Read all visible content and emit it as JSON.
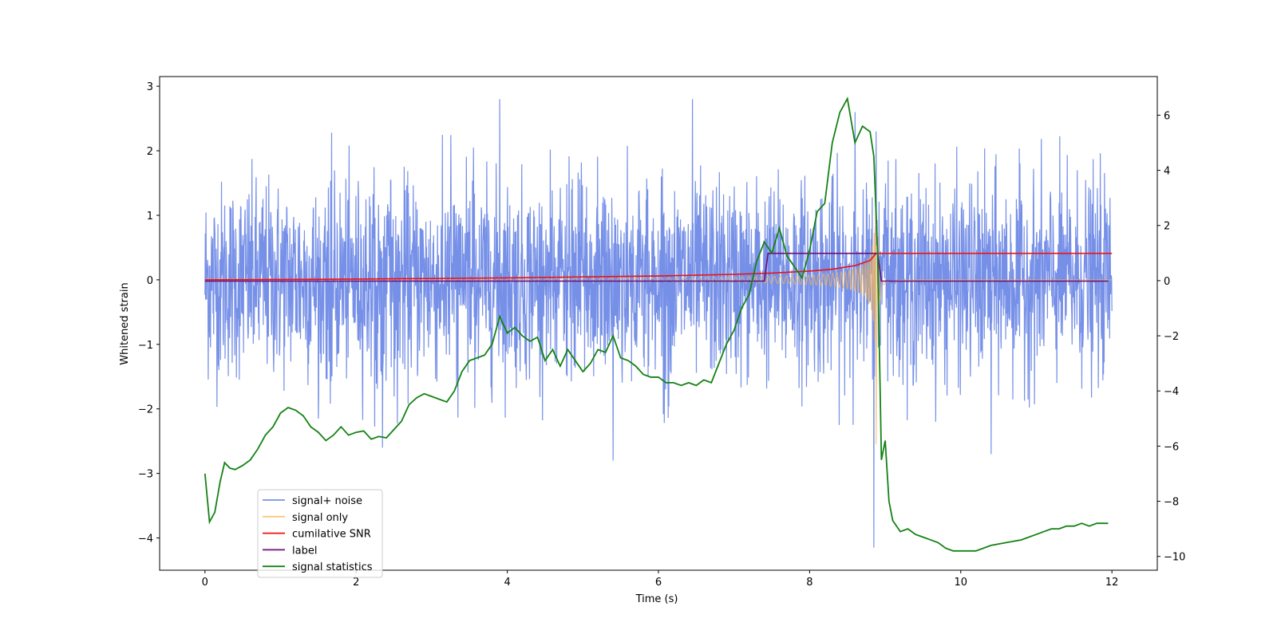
{
  "chart_data": {
    "type": "line",
    "title": "",
    "xlabel": "Time (s)",
    "ylabel": "Whitened strain",
    "y2label": "",
    "xlim": [
      -0.6,
      12.6
    ],
    "ylim": [
      -4.5,
      3.15
    ],
    "y2lim": [
      -10.5,
      7.4
    ],
    "xticks": [
      0,
      2,
      4,
      6,
      8,
      10,
      12
    ],
    "yticks": [
      -4,
      -3,
      -2,
      -1,
      0,
      1,
      2,
      3
    ],
    "y2ticks": [
      -10,
      -8,
      -6,
      -4,
      -2,
      0,
      2,
      4,
      6
    ],
    "grid": false,
    "legend_position": "lower-left",
    "colors": {
      "signal_noise": "#6a87e6",
      "signal_only": "#f5b55a",
      "cumulative_snr": "#ee1111",
      "label": "#6a0f78",
      "signal_statistics": "#148214"
    },
    "legend": [
      {
        "name": "signal+ noise",
        "color": "#7893e6"
      },
      {
        "name": "signal only",
        "color": "#fcc97a"
      },
      {
        "name": "cumilative SNR",
        "color": "#ee1111"
      },
      {
        "name": "label",
        "color": "#6a0f78"
      },
      {
        "name": "signal statistics",
        "color": "#148214"
      }
    ],
    "series": [
      {
        "name": "signal+ noise",
        "axis": "left",
        "t_range": [
          0,
          12
        ],
        "description_std": 0.75,
        "spike_peaks": [
          [
            3.9,
            2.8
          ],
          [
            6.45,
            2.8
          ],
          [
            8.6,
            2.6
          ],
          [
            5.4,
            -2.8
          ],
          [
            8.85,
            -4.15
          ],
          [
            8.88,
            2.3
          ],
          [
            10.4,
            -2.7
          ],
          [
            2.35,
            -2.6
          ]
        ]
      },
      {
        "name": "signal only",
        "axis": "left",
        "t_range": [
          0,
          12
        ],
        "merger_time": 8.88,
        "peak_amplitude": 1.9
      },
      {
        "name": "cumilative SNR",
        "axis": "left",
        "x": [
          0,
          1,
          2,
          3,
          4,
          5,
          6,
          7,
          7.5,
          8,
          8.3,
          8.6,
          8.8,
          8.88,
          9,
          12
        ],
        "values": [
          0.0,
          0.005,
          0.012,
          0.02,
          0.03,
          0.045,
          0.06,
          0.085,
          0.105,
          0.135,
          0.165,
          0.22,
          0.3,
          0.41,
          0.41,
          0.41
        ]
      },
      {
        "name": "label",
        "axis": "left",
        "x": [
          0,
          7.4,
          7.45,
          8.9,
          8.95,
          11.95
        ],
        "values": [
          -0.02,
          -0.02,
          0.41,
          0.41,
          -0.02,
          -0.02
        ]
      },
      {
        "name": "signal statistics",
        "axis": "right",
        "x": [
          0.0,
          0.06,
          0.13,
          0.2,
          0.26,
          0.33,
          0.4,
          0.5,
          0.6,
          0.7,
          0.8,
          0.9,
          1.0,
          1.1,
          1.2,
          1.3,
          1.4,
          1.5,
          1.6,
          1.7,
          1.8,
          1.9,
          2.0,
          2.1,
          2.2,
          2.3,
          2.4,
          2.5,
          2.6,
          2.7,
          2.8,
          2.9,
          3.0,
          3.1,
          3.2,
          3.3,
          3.4,
          3.5,
          3.6,
          3.7,
          3.8,
          3.9,
          4.0,
          4.1,
          4.2,
          4.3,
          4.4,
          4.5,
          4.6,
          4.7,
          4.8,
          4.9,
          5.0,
          5.1,
          5.2,
          5.3,
          5.4,
          5.5,
          5.6,
          5.7,
          5.8,
          5.9,
          6.0,
          6.1,
          6.2,
          6.3,
          6.4,
          6.5,
          6.6,
          6.7,
          6.8,
          6.9,
          7.0,
          7.1,
          7.2,
          7.3,
          7.4,
          7.5,
          7.6,
          7.7,
          7.8,
          7.9,
          8.0,
          8.1,
          8.2,
          8.3,
          8.4,
          8.5,
          8.6,
          8.7,
          8.8,
          8.85,
          8.9,
          8.95,
          9.0,
          9.05,
          9.1,
          9.2,
          9.3,
          9.4,
          9.5,
          9.6,
          9.7,
          9.8,
          9.9,
          10.0,
          10.2,
          10.4,
          10.6,
          10.8,
          11.0,
          11.1,
          11.2,
          11.3,
          11.4,
          11.5,
          11.6,
          11.7,
          11.8,
          11.9,
          11.95
        ],
        "values": [
          -7.0,
          -8.75,
          -8.4,
          -7.3,
          -6.6,
          -6.8,
          -6.85,
          -6.7,
          -6.5,
          -6.1,
          -5.6,
          -5.3,
          -4.8,
          -4.6,
          -4.7,
          -4.9,
          -5.3,
          -5.5,
          -5.8,
          -5.6,
          -5.3,
          -5.6,
          -5.5,
          -5.45,
          -5.75,
          -5.65,
          -5.7,
          -5.4,
          -5.1,
          -4.5,
          -4.25,
          -4.1,
          -4.2,
          -4.3,
          -4.4,
          -4.0,
          -3.3,
          -2.9,
          -2.8,
          -2.7,
          -2.3,
          -1.3,
          -1.9,
          -1.7,
          -2.0,
          -2.2,
          -2.05,
          -2.9,
          -2.5,
          -3.1,
          -2.5,
          -2.9,
          -3.3,
          -3.0,
          -2.5,
          -2.6,
          -2.0,
          -2.8,
          -2.9,
          -3.1,
          -3.4,
          -3.5,
          -3.5,
          -3.7,
          -3.7,
          -3.8,
          -3.7,
          -3.8,
          -3.6,
          -3.7,
          -3.0,
          -2.3,
          -1.8,
          -1.0,
          -0.5,
          0.7,
          1.4,
          1.0,
          1.9,
          0.9,
          0.5,
          0.1,
          1.1,
          2.5,
          2.8,
          5.0,
          6.1,
          6.6,
          5.0,
          5.6,
          5.4,
          4.5,
          1.0,
          -6.5,
          -5.8,
          -8.0,
          -8.7,
          -9.1,
          -9.0,
          -9.2,
          -9.3,
          -9.4,
          -9.5,
          -9.7,
          -9.8,
          -9.8,
          -9.8,
          -9.6,
          -9.5,
          -9.4,
          -9.2,
          -9.1,
          -9.0,
          -9.0,
          -8.9,
          -8.9,
          -8.8,
          -8.9,
          -8.8,
          -8.8,
          -8.8
        ]
      }
    ]
  }
}
